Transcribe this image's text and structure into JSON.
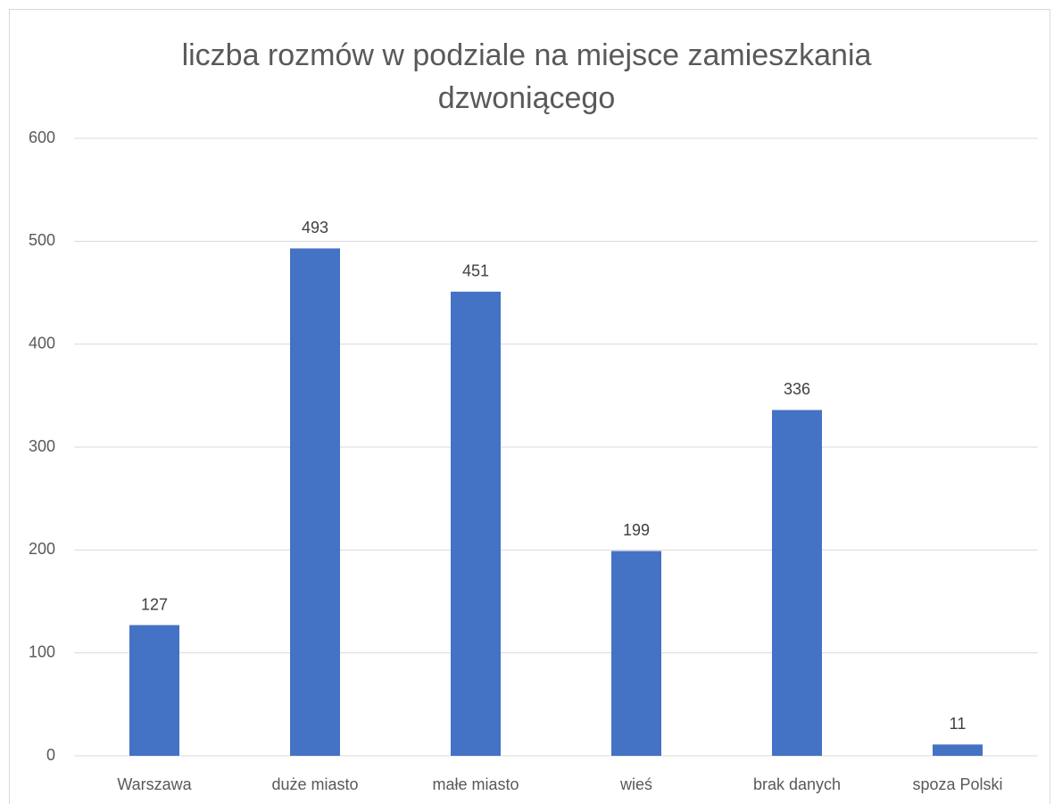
{
  "chart_data": {
    "type": "bar",
    "title": "liczba rozmów w podziale na miejsce zamieszkania dzwoniącego",
    "categories": [
      "Warszawa",
      "duże miasto",
      "małe miasto",
      "wieś",
      "brak danych",
      "spoza Polski"
    ],
    "values": [
      127,
      493,
      451,
      199,
      336,
      11
    ],
    "color": "#4472c4",
    "ylim": [
      0,
      600
    ],
    "yticks": [
      0,
      100,
      200,
      300,
      400,
      500,
      600
    ],
    "grid": true
  }
}
